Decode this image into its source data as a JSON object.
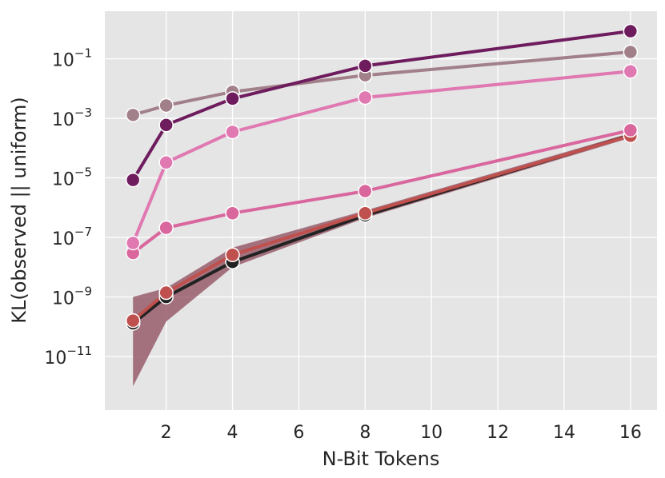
{
  "chart_data": {
    "type": "line",
    "title": "",
    "xlabel": "N-Bit Tokens",
    "ylabel": "KL(observed || uniform)",
    "y_scale": "log",
    "xlim": [
      0.15,
      16.8
    ],
    "ylim_exp": [
      -12.8,
      0.6
    ],
    "x_ticks": [
      2,
      4,
      6,
      8,
      10,
      12,
      14,
      16
    ],
    "x_tick_labels": [
      "2",
      "4",
      "6",
      "8",
      "10",
      "12",
      "14",
      "16"
    ],
    "y_ticks_exp": [
      -11,
      -9,
      -7,
      -5,
      -3,
      -1
    ],
    "y_tick_labels": [
      {
        "base": "10",
        "exp": "−11"
      },
      {
        "base": "10",
        "exp": "−9"
      },
      {
        "base": "10",
        "exp": "−7"
      },
      {
        "base": "10",
        "exp": "−5"
      },
      {
        "base": "10",
        "exp": "−3"
      },
      {
        "base": "10",
        "exp": "−1"
      }
    ],
    "grid": true,
    "background": "#e5e5e5",
    "x": [
      1,
      2,
      4,
      8,
      16
    ],
    "band": {
      "color": "#8c4a5a",
      "lower": [
        1e-12,
        1.5e-10,
        1e-08,
        4.5e-07,
        0.00022
      ],
      "upper": [
        1e-09,
        2e-09,
        4.5e-08,
        8e-07,
        0.00032
      ]
    },
    "series": [
      {
        "color": "#222222",
        "values": [
          1.3e-10,
          1e-09,
          1.5e-08,
          5.5e-07,
          0.00027
        ]
      },
      {
        "color": "#c0504d",
        "values": [
          1.6e-10,
          1.4e-09,
          2.6e-08,
          6.5e-07,
          0.00026
        ]
      },
      {
        "color": "#d9679e",
        "values": [
          3e-08,
          2.1e-07,
          6.5e-07,
          3.6e-06,
          0.0004
        ]
      },
      {
        "color": "#e078b1",
        "values": [
          6.5e-08,
          3.3e-05,
          0.00035,
          0.005,
          0.038
        ]
      },
      {
        "color": "#a2808a",
        "values": [
          0.0013,
          0.0027,
          0.0078,
          0.028,
          0.17
        ]
      },
      {
        "color": "#6e1c5e",
        "values": [
          8.5e-06,
          0.0006,
          0.0046,
          0.058,
          0.85
        ]
      }
    ]
  }
}
